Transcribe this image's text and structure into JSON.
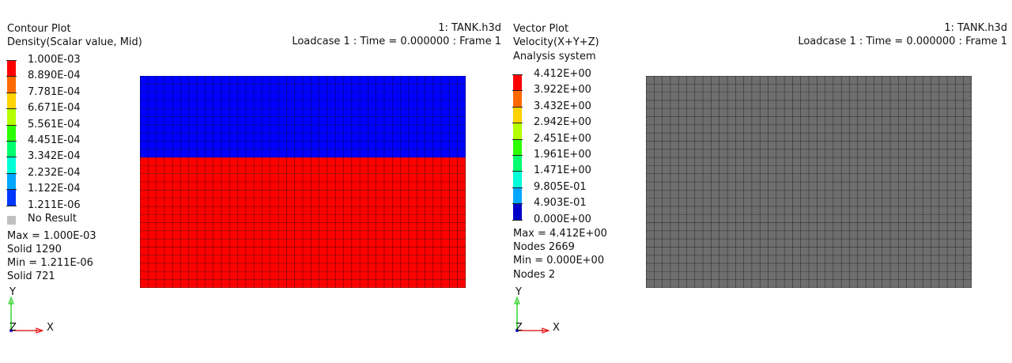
{
  "left_view": {
    "plot_type": "Contour Plot",
    "result": "Density(Scalar value, Mid)",
    "model": "1: TANK.h3d",
    "loadcase": "Loadcase 1 : Time = 0.000000 : Frame 1",
    "legend": [
      {
        "value": "1.000E-03",
        "color": "#ff0000"
      },
      {
        "value": "8.890E-04",
        "color": "#ff6a00"
      },
      {
        "value": "7.781E-04",
        "color": "#ffd200"
      },
      {
        "value": "6.671E-04",
        "color": "#b4ff00"
      },
      {
        "value": "5.561E-04",
        "color": "#2bff00"
      },
      {
        "value": "4.451E-04",
        "color": "#00ff6e"
      },
      {
        "value": "3.342E-04",
        "color": "#00ffd8"
      },
      {
        "value": "2.232E-04",
        "color": "#00a6ff"
      },
      {
        "value": "1.122E-04",
        "color": "#0037ff"
      },
      {
        "value": "1.211E-06",
        "color": null
      }
    ],
    "no_result_label": "No Result",
    "max_line": "Max = 1.000E-03",
    "max_entity": "Solid 1290",
    "min_line": "Min = 1.211E-06",
    "min_entity": "Solid 721",
    "fill_top_color": "#0000ff",
    "fill_bottom_color": "#ff0000",
    "axis_y": "Y",
    "axis_z": "Z",
    "axis_x": "X"
  },
  "right_view": {
    "plot_type": "Vector Plot",
    "result": "Velocity(X+Y+Z)",
    "system": "Analysis system",
    "model": "1: TANK.h3d",
    "loadcase": "Loadcase 1 : Time = 0.000000 : Frame 1",
    "legend": [
      {
        "value": "4.412E+00",
        "color": "#ff0000"
      },
      {
        "value": "3.922E+00",
        "color": "#ff6a00"
      },
      {
        "value": "3.432E+00",
        "color": "#ffd200"
      },
      {
        "value": "2.942E+00",
        "color": "#b4ff00"
      },
      {
        "value": "2.451E+00",
        "color": "#2bff00"
      },
      {
        "value": "1.961E+00",
        "color": "#00ff6e"
      },
      {
        "value": "1.471E+00",
        "color": "#00ffd8"
      },
      {
        "value": "9.805E-01",
        "color": "#00a6ff"
      },
      {
        "value": "4.903E-01",
        "color": "#0000c8"
      },
      {
        "value": "0.000E+00",
        "color": null
      }
    ],
    "max_line": "Max = 4.412E+00",
    "max_entity": "Nodes 2669",
    "min_line": "Min = 0.000E+00",
    "min_entity": "Nodes 2",
    "fill_color": "#6e6e6e",
    "axis_y": "Y",
    "axis_z": "Z",
    "axis_x": "X"
  },
  "colors": {
    "no_result": "#c0c0c0",
    "mesh_lines": "#000000"
  }
}
